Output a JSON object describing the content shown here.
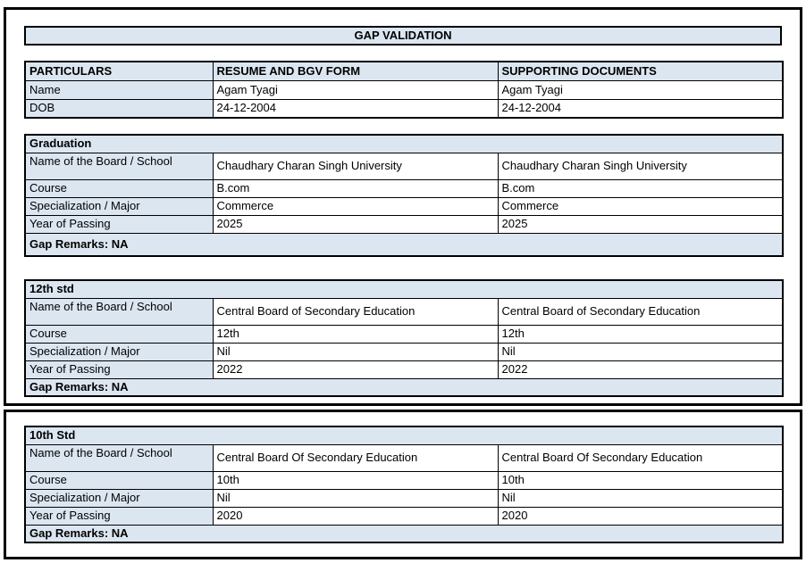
{
  "page": {
    "title": "GAP VALIDATION"
  },
  "colors": {
    "header_bg": "#dce6f1",
    "border": "#000000"
  },
  "particulars_table": {
    "headers": [
      "PARTICULARS",
      "RESUME AND BGV FORM",
      "SUPPORTING DOCUMENTS"
    ],
    "rows": [
      {
        "label": "Name",
        "resume": "Agam Tyagi",
        "supporting": "Agam Tyagi"
      },
      {
        "label": "DOB",
        "resume": "24-12-2004",
        "supporting": "24-12-2004"
      }
    ]
  },
  "sections": [
    {
      "title": "Graduation",
      "rows": [
        {
          "label": "Name of the Board / School",
          "resume": "Chaudhary Charan Singh University",
          "supporting": "Chaudhary Charan Singh University"
        },
        {
          "label": "Course",
          "resume": "B.com",
          "supporting": "B.com"
        },
        {
          "label": "Specialization / Major",
          "resume": "Commerce",
          "supporting": "Commerce"
        },
        {
          "label": "Year of Passing",
          "resume": "2025",
          "supporting": "2025"
        }
      ],
      "gap_remarks": "Gap Remarks: NA"
    },
    {
      "title": "12th std",
      "rows": [
        {
          "label": "Name of the Board / School",
          "resume": "Central Board of Secondary Education",
          "supporting": "Central Board of Secondary Education"
        },
        {
          "label": "Course",
          "resume": "12th",
          "supporting": "12th"
        },
        {
          "label": "Specialization / Major",
          "resume": "Nil",
          "supporting": "Nil"
        },
        {
          "label": "Year of Passing",
          "resume": "2022",
          "supporting": "2022"
        }
      ],
      "gap_remarks": "Gap Remarks: NA"
    },
    {
      "title": "10th Std",
      "rows": [
        {
          "label": "Name of the Board / School",
          "resume": "Central Board Of Secondary Education",
          "supporting": "Central Board Of Secondary Education"
        },
        {
          "label": "Course",
          "resume": "10th",
          "supporting": "10th"
        },
        {
          "label": "Specialization / Major",
          "resume": "Nil",
          "supporting": "Nil"
        },
        {
          "label": "Year of Passing",
          "resume": "2020",
          "supporting": "2020"
        }
      ],
      "gap_remarks": "Gap Remarks: NA"
    }
  ]
}
